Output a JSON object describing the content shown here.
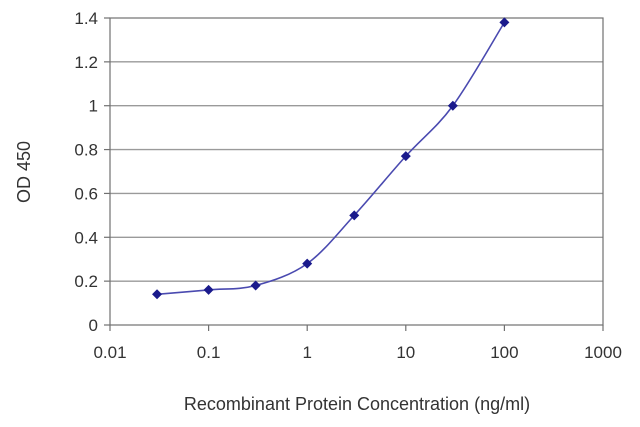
{
  "chart_data": {
    "type": "line",
    "title": "",
    "xlabel": "Recombinant Protein Concentration (ng/ml)",
    "ylabel": "OD 450",
    "x_scale": "log",
    "xlim": [
      0.01,
      1000
    ],
    "ylim": [
      0,
      1.4
    ],
    "x_ticks": [
      "0.01",
      "0.1",
      "1",
      "10",
      "100",
      "1000"
    ],
    "y_ticks": [
      "0",
      "0.2",
      "0.4",
      "0.6",
      "0.8",
      "1",
      "1.2",
      "1.4"
    ],
    "grid": "horizontal",
    "legend": "none",
    "series": [
      {
        "x": [
          0.03,
          0.1,
          0.3,
          1,
          3,
          10,
          30,
          100
        ],
        "y": [
          0.14,
          0.16,
          0.18,
          0.28,
          0.5,
          0.77,
          1.0,
          1.38
        ]
      }
    ]
  },
  "colors": {
    "line": "#4a4ab0",
    "marker": "#1a1a8c",
    "grid": "#9a9a9a",
    "axis": "#707070"
  }
}
